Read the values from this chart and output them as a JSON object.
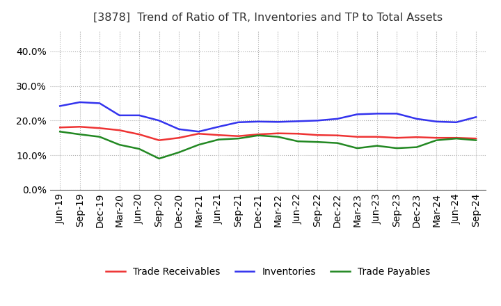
{
  "title": "[3878]  Trend of Ratio of TR, Inventories and TP to Total Assets",
  "labels": [
    "Jun-19",
    "Sep-19",
    "Dec-19",
    "Mar-20",
    "Jun-20",
    "Sep-20",
    "Dec-20",
    "Mar-21",
    "Jun-21",
    "Sep-21",
    "Dec-21",
    "Mar-22",
    "Jun-22",
    "Sep-22",
    "Dec-22",
    "Mar-23",
    "Jun-23",
    "Sep-23",
    "Dec-23",
    "Mar-24",
    "Jun-24",
    "Sep-24"
  ],
  "trade_receivables": [
    0.18,
    0.182,
    0.178,
    0.172,
    0.16,
    0.143,
    0.15,
    0.162,
    0.158,
    0.155,
    0.16,
    0.163,
    0.162,
    0.158,
    0.157,
    0.153,
    0.153,
    0.15,
    0.152,
    0.15,
    0.15,
    0.148
  ],
  "inventories": [
    0.242,
    0.253,
    0.25,
    0.215,
    0.215,
    0.2,
    0.175,
    0.168,
    0.182,
    0.195,
    0.197,
    0.196,
    0.198,
    0.2,
    0.205,
    0.218,
    0.22,
    0.22,
    0.205,
    0.197,
    0.195,
    0.21
  ],
  "trade_payables": [
    0.168,
    0.16,
    0.153,
    0.13,
    0.118,
    0.09,
    0.108,
    0.13,
    0.145,
    0.148,
    0.157,
    0.153,
    0.14,
    0.138,
    0.135,
    0.12,
    0.127,
    0.12,
    0.123,
    0.143,
    0.148,
    0.143
  ],
  "tr_color": "#ee3333",
  "inv_color": "#3333ee",
  "tp_color": "#228822",
  "background_color": "#ffffff",
  "grid_color": "#aaaaaa",
  "ylim": [
    0.0,
    0.46
  ],
  "yticks": [
    0.0,
    0.1,
    0.2,
    0.3,
    0.4
  ],
  "legend_labels": [
    "Trade Receivables",
    "Inventories",
    "Trade Payables"
  ],
  "title_fontsize": 11.5,
  "tick_fontsize": 10,
  "legend_fontsize": 10,
  "linewidth": 1.8
}
